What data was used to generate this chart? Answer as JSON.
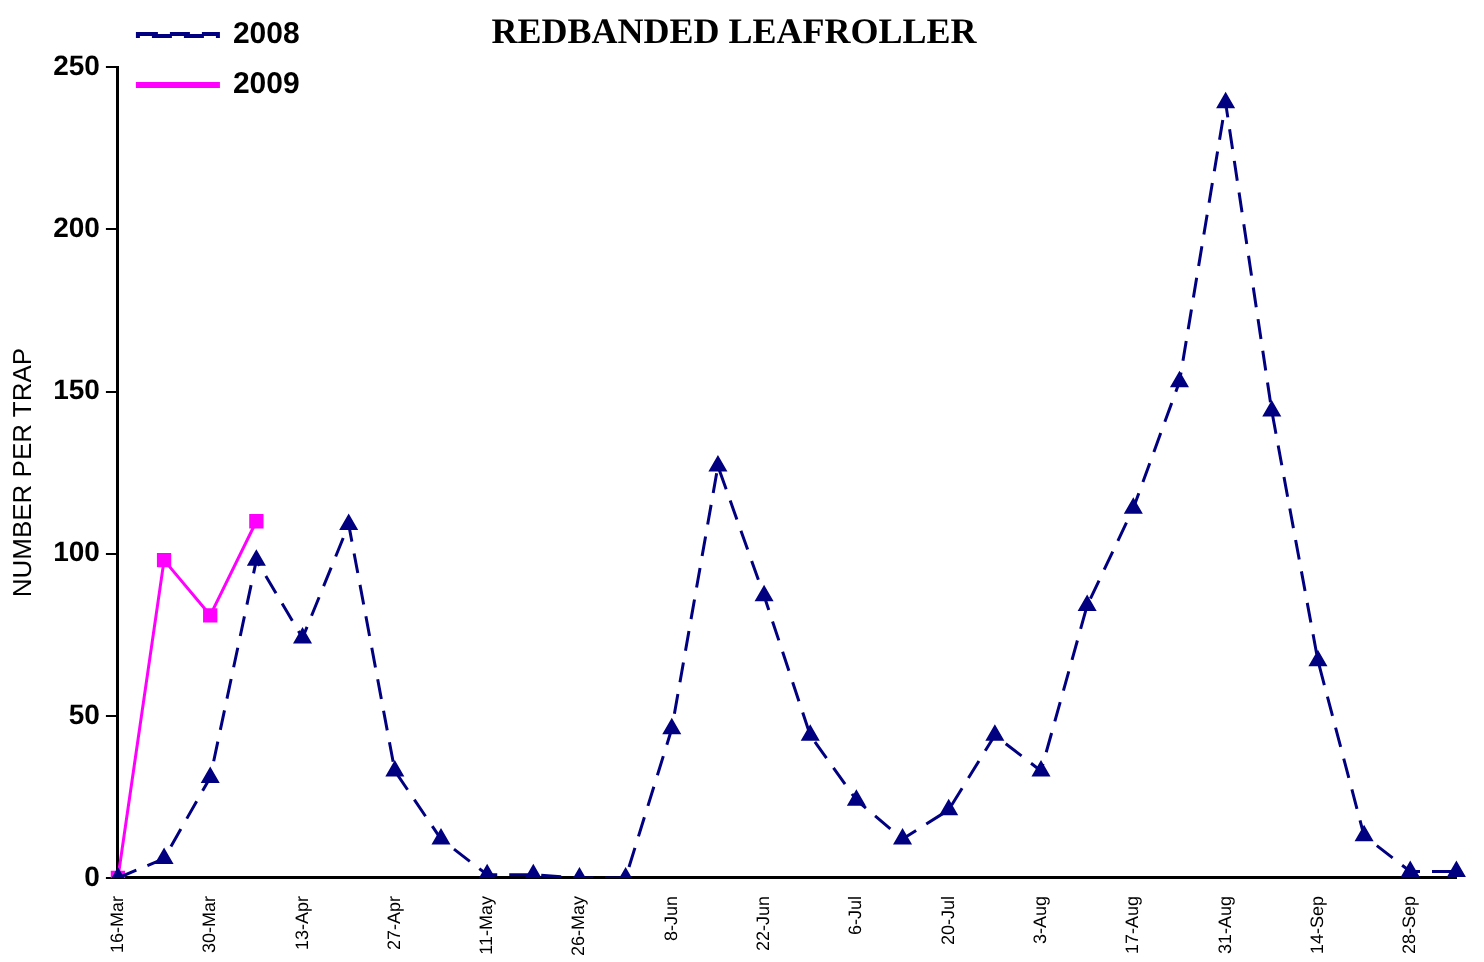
{
  "chart_data": {
    "type": "line",
    "title": "REDBANDED LEAFROLLER",
    "ylabel": "NUMBER PER TRAP",
    "categories": [
      "16-Mar",
      null,
      "30-Mar",
      null,
      "13-Apr",
      null,
      "27-Apr",
      null,
      "11-May",
      null,
      "26-May",
      null,
      "8-Jun",
      null,
      "22-Jun",
      null,
      "6-Jul",
      null,
      "20-Jul",
      null,
      "3-Aug",
      null,
      "17-Aug",
      null,
      "31-Aug",
      null,
      "14-Sep",
      null,
      "28-Sep",
      null
    ],
    "series": [
      {
        "name": "2008",
        "color": "#000080",
        "marker": "triangle",
        "line_style": "dashed",
        "values": [
          0,
          6,
          31,
          98,
          74,
          109,
          33,
          12,
          1,
          1,
          0,
          0,
          46,
          127,
          87,
          44,
          24,
          12,
          21,
          44,
          33,
          84,
          114,
          153,
          239,
          144,
          67,
          13,
          2,
          2
        ]
      },
      {
        "name": "2009",
        "color": "#ff00ff",
        "marker": "square",
        "line_style": "solid",
        "values": [
          0,
          98,
          81,
          110,
          null,
          null,
          null,
          null,
          null,
          null,
          null,
          null,
          null,
          null,
          null,
          null,
          null,
          null,
          null,
          null,
          null,
          null,
          null,
          null,
          null,
          null,
          null,
          null,
          null,
          null
        ]
      }
    ],
    "ylim": [
      0,
      250
    ],
    "yticks": [
      0,
      50,
      100,
      150,
      200,
      250
    ],
    "grid": false,
    "legend": "top left"
  }
}
